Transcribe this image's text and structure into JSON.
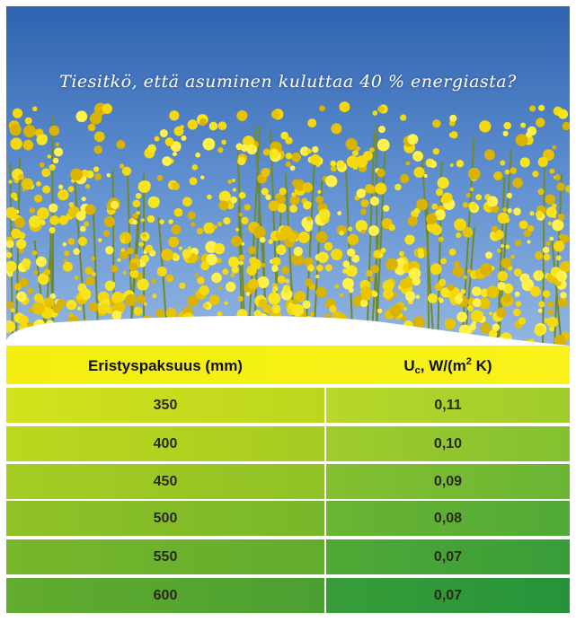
{
  "tagline": "Tiesitkö, että asuminen kuluttaa 40 % energiasta?",
  "table": {
    "header": {
      "thickness": "Eristyspaksuus (mm)",
      "u_value": [
        "U",
        "c",
        ", W/(m",
        "2",
        " K)"
      ]
    },
    "rows": [
      [
        "350",
        "0,11"
      ],
      [
        "400",
        "0,10"
      ],
      [
        "450",
        "0,09"
      ],
      [
        "500",
        "0,08"
      ],
      [
        "550",
        "0,07"
      ],
      [
        "600",
        "0,07"
      ]
    ]
  }
}
